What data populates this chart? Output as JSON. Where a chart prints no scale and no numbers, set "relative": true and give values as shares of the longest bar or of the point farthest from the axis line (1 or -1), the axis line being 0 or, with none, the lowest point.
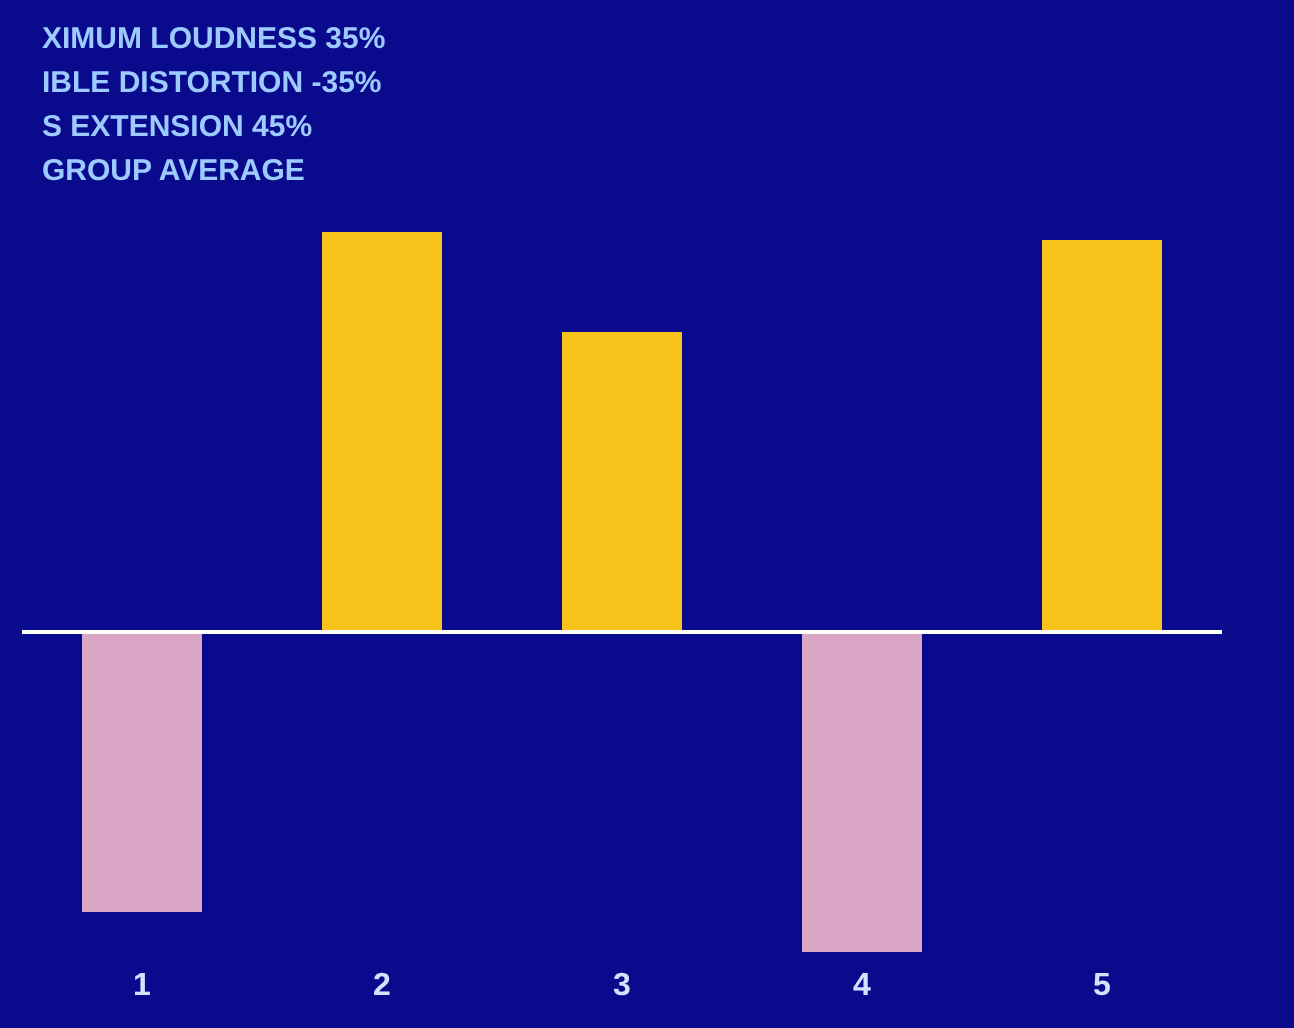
{
  "chart_data": {
    "type": "bar",
    "relative": true,
    "categories": [
      "1",
      "2",
      "3",
      "4",
      "5"
    ],
    "values": [
      -0.7,
      1,
      0.75,
      -0.8,
      0.98
    ],
    "colors": [
      "#d9a6c6",
      "#f7c21a",
      "#f7c21a",
      "#d9a6c6",
      "#f7c21a"
    ],
    "annotations": [
      "XIMUM LOUDNESS 35%",
      "IBLE DISTORTION -35%",
      "S EXTENSION 45%",
      "GROUP AVERAGE"
    ]
  }
}
